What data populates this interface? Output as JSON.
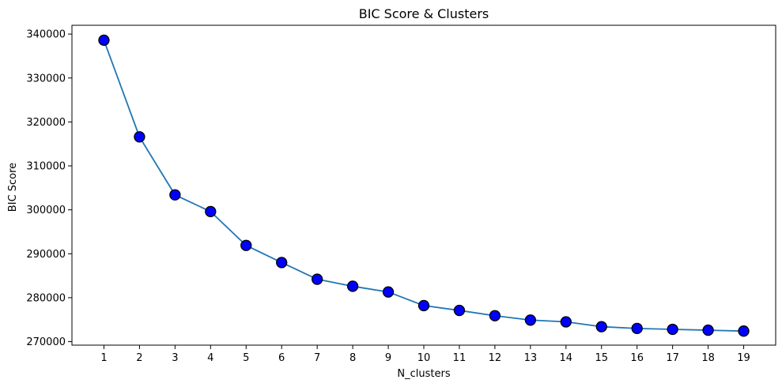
{
  "chart_data": {
    "type": "line",
    "title": "BIC Score & Clusters",
    "xlabel": "N_clusters",
    "ylabel": "BIC Score",
    "x": [
      1,
      2,
      3,
      4,
      5,
      6,
      7,
      8,
      9,
      10,
      11,
      12,
      13,
      14,
      15,
      16,
      17,
      18,
      19
    ],
    "series": [
      {
        "values": [
          338600,
          316600,
          303400,
          299600,
          291900,
          288000,
          284200,
          282600,
          281300,
          278200,
          277100,
          275900,
          274900,
          274500,
          273400,
          273000,
          272800,
          272600,
          272400
        ]
      }
    ],
    "xticks": [
      1,
      2,
      3,
      4,
      5,
      6,
      7,
      8,
      9,
      10,
      11,
      12,
      13,
      14,
      15,
      16,
      17,
      18,
      19
    ],
    "yticks": [
      270000,
      280000,
      290000,
      300000,
      310000,
      320000,
      330000,
      340000
    ],
    "ylim": [
      269200,
      342000
    ],
    "grid": false,
    "colors": {
      "line": "#1f77b4",
      "marker_fill": "#0000ff",
      "marker_edge": "#000000",
      "axes": "#000000"
    }
  }
}
